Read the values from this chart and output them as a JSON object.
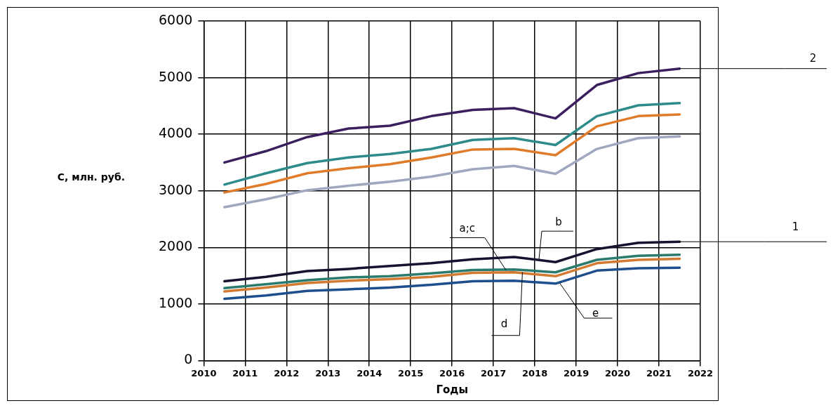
{
  "chart_data": {
    "type": "line",
    "xlabel": "Годы",
    "ylabel": "С, млн. руб.",
    "x": [
      2010.5,
      2011.5,
      2012.5,
      2013.5,
      2014.5,
      2015.5,
      2016.5,
      2017.5,
      2018.5,
      2019.5,
      2020.5,
      2021.5
    ],
    "xlim": [
      2010,
      2022
    ],
    "xticks": [
      2010,
      2011,
      2012,
      2013,
      2014,
      2015,
      2016,
      2017,
      2018,
      2019,
      2020,
      2021,
      2022
    ],
    "ylim": [
      0,
      6000
    ],
    "yticks": [
      0,
      1000,
      2000,
      3000,
      4000,
      5000,
      6000
    ],
    "grid": true,
    "legend": false,
    "marker": "none",
    "line_style": "solid",
    "series": [
      {
        "color": "#3b1f5e",
        "values": [
          3500,
          3700,
          3950,
          4100,
          4150,
          4320,
          4430,
          4460,
          4280,
          4870,
          5080,
          5160
        ]
      },
      {
        "color": "#2e8b8b",
        "values": [
          3110,
          3310,
          3490,
          3590,
          3650,
          3740,
          3900,
          3930,
          3810,
          4320,
          4510,
          4550
        ]
      },
      {
        "color": "#e07b2a",
        "values": [
          2970,
          3120,
          3310,
          3400,
          3470,
          3590,
          3730,
          3740,
          3630,
          4140,
          4320,
          4350
        ]
      },
      {
        "color": "#a0a8c0",
        "values": [
          2710,
          2850,
          3010,
          3090,
          3160,
          3250,
          3380,
          3440,
          3300,
          3740,
          3930,
          3960
        ]
      },
      {
        "color": "#1a1030",
        "values": [
          1400,
          1480,
          1580,
          1620,
          1670,
          1720,
          1790,
          1830,
          1740,
          1970,
          2080,
          2100
        ]
      },
      {
        "color": "#2a7a6e",
        "values": [
          1280,
          1350,
          1420,
          1470,
          1490,
          1540,
          1600,
          1610,
          1560,
          1780,
          1850,
          1870
        ]
      },
      {
        "color": "#d27a30",
        "values": [
          1220,
          1290,
          1370,
          1410,
          1440,
          1480,
          1550,
          1560,
          1490,
          1720,
          1780,
          1800
        ]
      },
      {
        "color": "#1f4e8c",
        "values": [
          1090,
          1150,
          1230,
          1260,
          1290,
          1340,
          1400,
          1410,
          1360,
          1590,
          1630,
          1640
        ]
      }
    ],
    "annotations": [
      {
        "text": "2",
        "x": 2021.5,
        "y": 5160
      },
      {
        "text": "1",
        "x": 2021.5,
        "y": 2100
      },
      {
        "text": "a;c",
        "x": 2017.3,
        "y": 1600
      },
      {
        "text": "b",
        "x": 2018.1,
        "y": 1790
      },
      {
        "text": "d",
        "x": 2017.7,
        "y": 1560
      },
      {
        "text": "e",
        "x": 2018.6,
        "y": 1370
      }
    ]
  }
}
